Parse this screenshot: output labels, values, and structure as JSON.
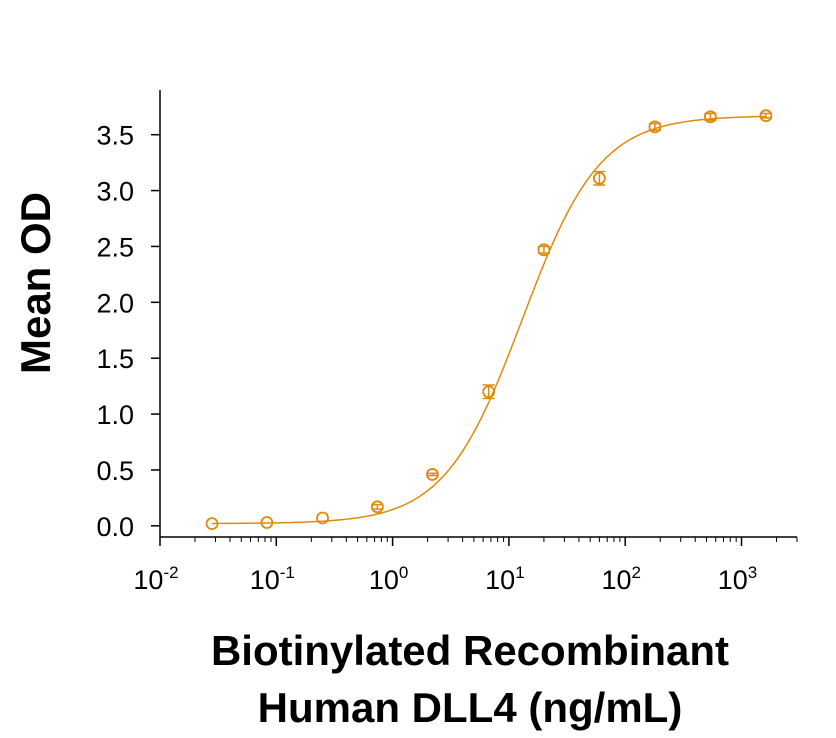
{
  "chart_data": {
    "type": "scatter",
    "xlabel_lines": [
      "Biotinylated Recombinant",
      "Human DLL4 (ng/mL)"
    ],
    "ylabel": "Mean OD",
    "x_scale": "log",
    "xlim": [
      0.01,
      3000
    ],
    "ylim": [
      -0.1,
      3.9
    ],
    "x_ticks": [
      {
        "value": 0.01,
        "base": "10",
        "exp": "-2"
      },
      {
        "value": 0.1,
        "base": "10",
        "exp": "-1"
      },
      {
        "value": 1,
        "base": "10",
        "exp": "0"
      },
      {
        "value": 10,
        "base": "10",
        "exp": "1"
      },
      {
        "value": 100,
        "base": "10",
        "exp": "2"
      },
      {
        "value": 1000,
        "base": "10",
        "exp": "3"
      }
    ],
    "y_ticks": [
      "0.0",
      "0.5",
      "1.0",
      "1.5",
      "2.0",
      "2.5",
      "3.0",
      "3.5"
    ],
    "grid": false,
    "legend": "none",
    "series": [
      {
        "color": "#E08A0B",
        "marker": "open-circle",
        "fit": "4PL",
        "fit_params": {
          "bottom": 0.02,
          "top": 3.67,
          "ec50": 13,
          "hill": 1.3
        },
        "points": [
          {
            "x": 0.028,
            "y": 0.02,
            "err": 0.0
          },
          {
            "x": 0.083,
            "y": 0.03,
            "err": 0.0
          },
          {
            "x": 0.25,
            "y": 0.07,
            "err": 0.0
          },
          {
            "x": 0.74,
            "y": 0.17,
            "err": 0.02
          },
          {
            "x": 2.2,
            "y": 0.46,
            "err": 0.01
          },
          {
            "x": 6.7,
            "y": 1.2,
            "err": 0.06
          },
          {
            "x": 20,
            "y": 2.47,
            "err": 0.03
          },
          {
            "x": 60,
            "y": 3.11,
            "err": 0.06
          },
          {
            "x": 180,
            "y": 3.57,
            "err": 0.03
          },
          {
            "x": 540,
            "y": 3.66,
            "err": 0.03
          },
          {
            "x": 1620,
            "y": 3.67,
            "err": 0.02
          }
        ]
      }
    ]
  }
}
